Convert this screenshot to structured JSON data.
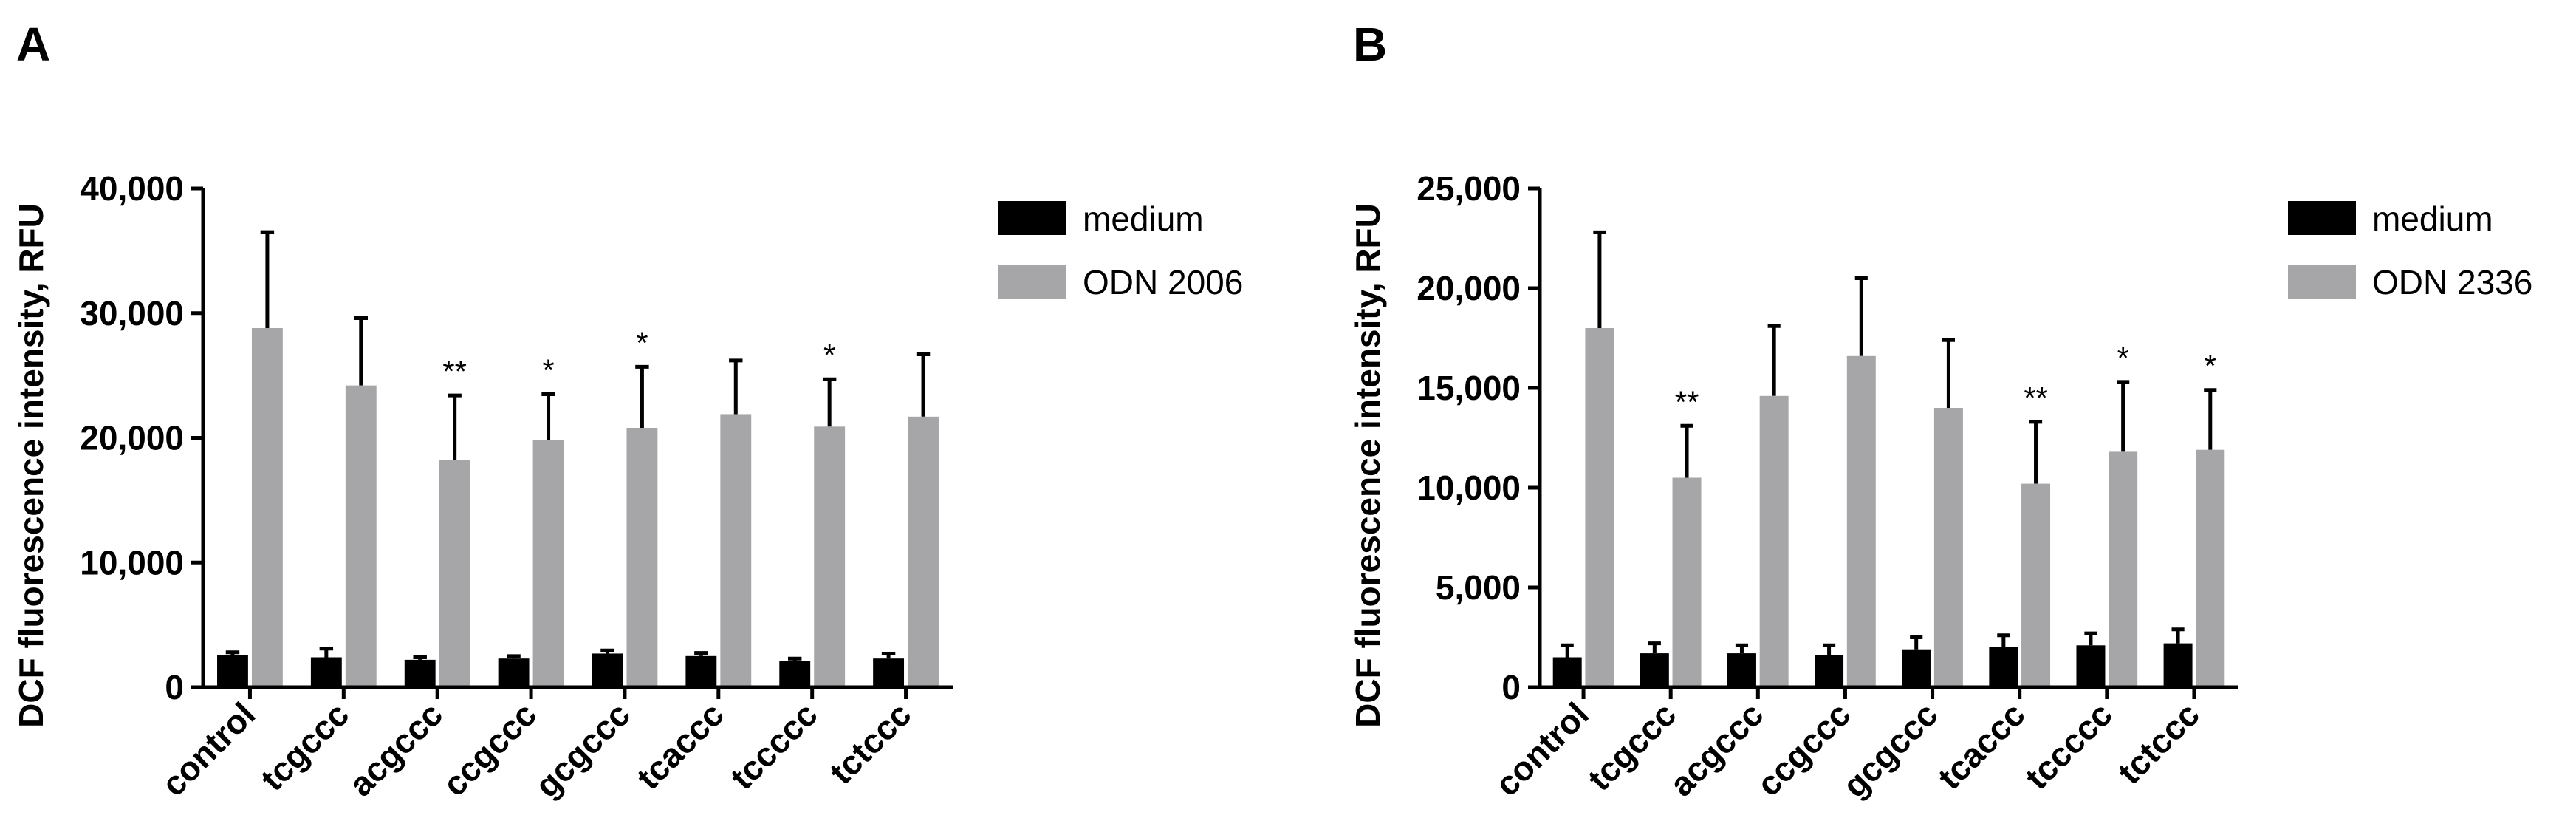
{
  "chart_data": [
    {
      "panel": "A",
      "type": "bar",
      "ylabel": "DCF fluorescence intensity, RFU",
      "ylim": [
        0,
        40000
      ],
      "yticks": [
        0,
        10000,
        20000,
        30000,
        40000
      ],
      "ytick_labels": [
        "0",
        "10,000",
        "20,000",
        "30,000",
        "40,000"
      ],
      "categories": [
        "control",
        "tcgccc",
        "acgccc",
        "ccgccc",
        "gcgccc",
        "tcaccc",
        "tccccc",
        "tctccc"
      ],
      "series": [
        {
          "name": "medium",
          "color": "#000000",
          "values": [
            2600,
            2400,
            2200,
            2300,
            2700,
            2500,
            2100,
            2300
          ],
          "errors": [
            200,
            700,
            200,
            200,
            250,
            250,
            200,
            400
          ]
        },
        {
          "name": "ODN 2006",
          "color": "#a6a6a8",
          "values": [
            28800,
            24200,
            18200,
            19800,
            20800,
            21900,
            20900,
            21700
          ],
          "errors": [
            7700,
            5400,
            5200,
            3700,
            4900,
            4300,
            3800,
            5000
          ]
        }
      ],
      "significance": [
        "",
        "",
        "**",
        "*",
        "*",
        "",
        "*",
        ""
      ]
    },
    {
      "panel": "B",
      "type": "bar",
      "ylabel": "DCF fluorescence intensity, RFU",
      "ylim": [
        0,
        25000
      ],
      "yticks": [
        0,
        5000,
        10000,
        15000,
        20000,
        25000
      ],
      "ytick_labels": [
        "0",
        "5,000",
        "10,000",
        "15,000",
        "20,000",
        "25,000"
      ],
      "categories": [
        "control",
        "tcgccc",
        "acgccc",
        "ccgccc",
        "gcgccc",
        "tcaccc",
        "tccccc",
        "tctccc"
      ],
      "series": [
        {
          "name": "medium",
          "color": "#000000",
          "values": [
            1500,
            1700,
            1700,
            1600,
            1900,
            2000,
            2100,
            2200
          ],
          "errors": [
            600,
            500,
            400,
            500,
            600,
            600,
            600,
            700
          ]
        },
        {
          "name": "ODN 2336",
          "color": "#a6a6a8",
          "values": [
            18000,
            10500,
            14600,
            16600,
            14000,
            10200,
            11800,
            11900
          ],
          "errors": [
            4800,
            2600,
            3500,
            3900,
            3400,
            3100,
            3500,
            3000
          ]
        }
      ],
      "significance": [
        "",
        "**",
        "",
        "",
        "",
        "**",
        "*",
        "*"
      ]
    }
  ]
}
